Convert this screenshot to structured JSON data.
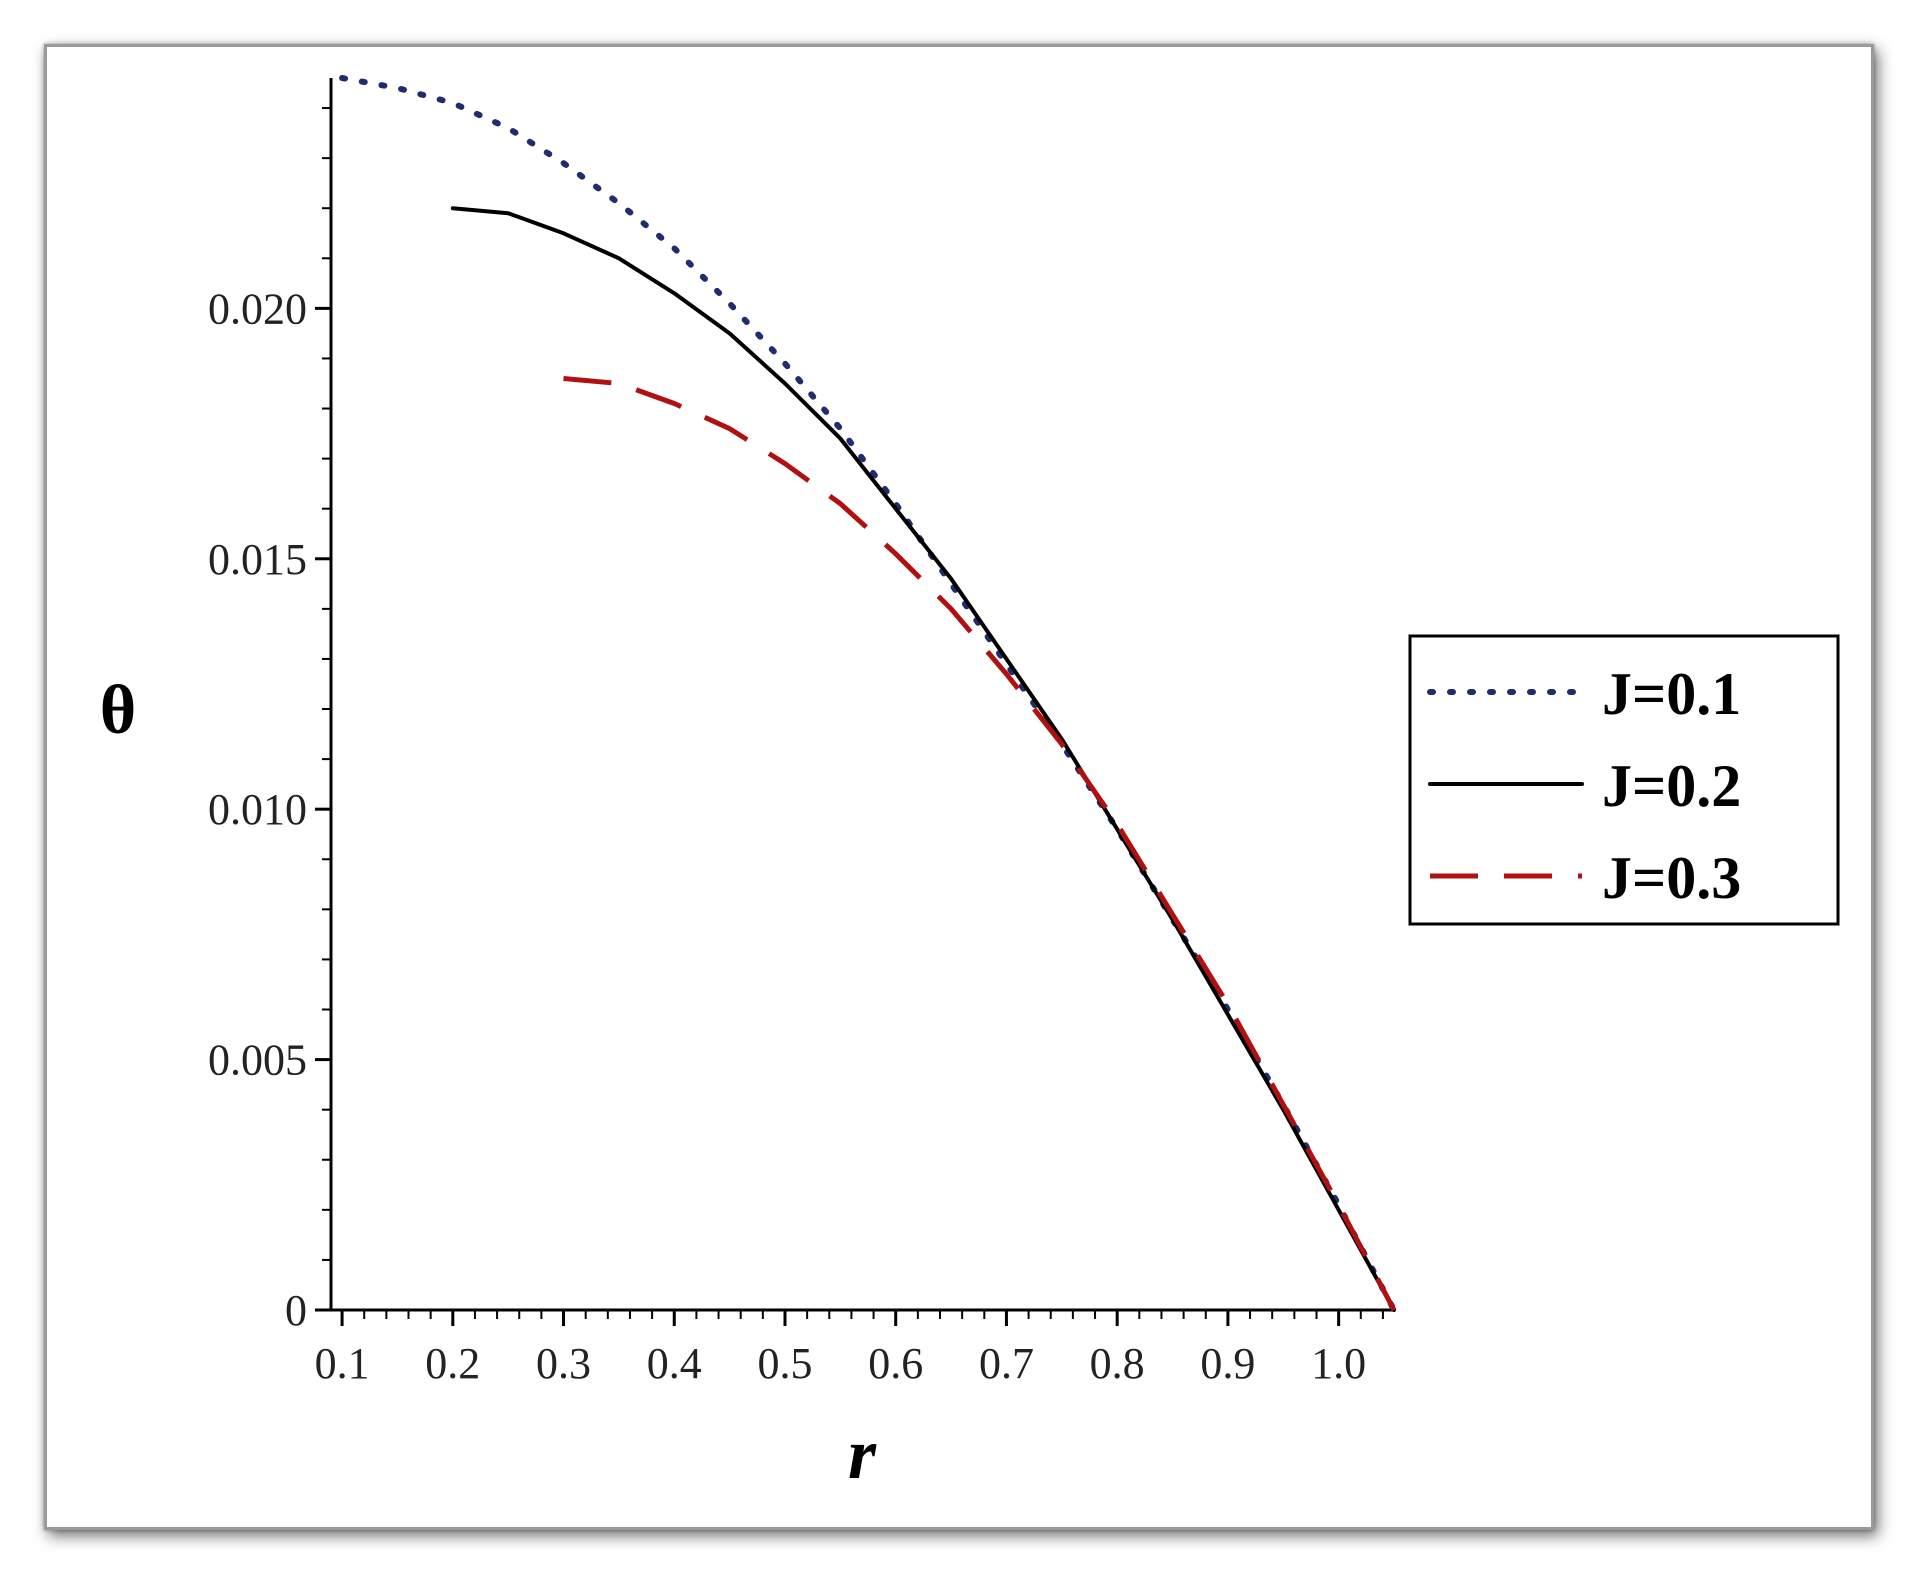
{
  "chart_data": {
    "type": "line",
    "title": "",
    "xlabel": "r",
    "ylabel": "θ",
    "xlim": [
      0.09,
      1.05
    ],
    "ylim": [
      0,
      0.0246
    ],
    "x_ticks": [
      0.1,
      0.2,
      0.3,
      0.4,
      0.5,
      0.6,
      0.7,
      0.8,
      0.9,
      1.0
    ],
    "x_tick_labels": [
      "0.1",
      "0.2",
      "0.3",
      "0.4",
      "0.5",
      "0.6",
      "0.7",
      "0.8",
      "0.9",
      "1.0"
    ],
    "y_ticks": [
      0,
      0.005,
      0.01,
      0.015,
      0.02
    ],
    "y_tick_labels": [
      "0",
      "0.005",
      "0.010",
      "0.015",
      "0.020"
    ],
    "grid": false,
    "legend_position": "right",
    "series": [
      {
        "name": "J=0.1",
        "style": "dotted",
        "color": "#1f2d6e",
        "x": [
          0.1,
          0.15,
          0.2,
          0.25,
          0.3,
          0.35,
          0.4,
          0.45,
          0.5,
          0.55,
          0.6,
          0.65,
          0.7,
          0.75,
          0.8,
          0.85,
          0.9,
          0.95,
          1.0,
          1.05
        ],
        "y": [
          0.0246,
          0.0244,
          0.0241,
          0.0236,
          0.0229,
          0.0221,
          0.0212,
          0.0201,
          0.0189,
          0.0176,
          0.0161,
          0.0145,
          0.0129,
          0.0113,
          0.0096,
          0.0078,
          0.006,
          0.0041,
          0.0021,
          0.0
        ]
      },
      {
        "name": "J=0.2",
        "style": "solid",
        "color": "#000000",
        "x": [
          0.2,
          0.25,
          0.3,
          0.35,
          0.4,
          0.45,
          0.5,
          0.55,
          0.6,
          0.65,
          0.7,
          0.75,
          0.8,
          0.85,
          0.9,
          0.95,
          1.0,
          1.05
        ],
        "y": [
          0.022,
          0.0219,
          0.0215,
          0.021,
          0.0203,
          0.0195,
          0.0185,
          0.0174,
          0.016,
          0.0146,
          0.013,
          0.0114,
          0.0096,
          0.0078,
          0.0059,
          0.004,
          0.002,
          0.0
        ]
      },
      {
        "name": "J=0.3",
        "style": "dashed",
        "color": "#b01010",
        "x": [
          0.3,
          0.35,
          0.4,
          0.45,
          0.5,
          0.55,
          0.6,
          0.65,
          0.7,
          0.75,
          0.8,
          0.85,
          0.9,
          0.95,
          1.0,
          1.05
        ],
        "y": [
          0.0186,
          0.0185,
          0.0181,
          0.0176,
          0.0169,
          0.0161,
          0.0151,
          0.014,
          0.0127,
          0.0113,
          0.0097,
          0.0079,
          0.0061,
          0.0041,
          0.0021,
          0.0
        ]
      }
    ]
  }
}
